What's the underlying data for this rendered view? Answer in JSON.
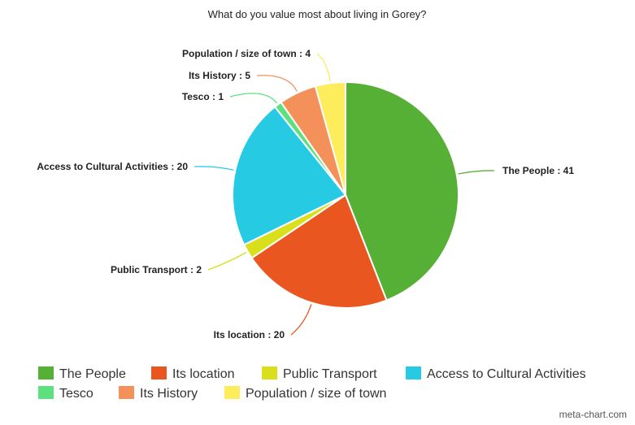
{
  "chart_data": {
    "type": "pie",
    "title": "What do you value most about living in Gorey?",
    "slices": [
      {
        "label": "The People",
        "value": 41,
        "color": "#56b036",
        "display": "The People : 41"
      },
      {
        "label": "Its location",
        "value": 20,
        "color": "#ea5620",
        "display": "Its location : 20"
      },
      {
        "label": "Public Transport",
        "value": 2,
        "color": "#d9df1a",
        "display": "Public Transport : 2"
      },
      {
        "label": "Access to Cultural Activities",
        "value": 20,
        "color": "#26cbe3",
        "display": "Access to Cultural Activities : 20"
      },
      {
        "label": "Tesco",
        "value": 1,
        "color": "#5ee07e",
        "display": "Tesco : 1"
      },
      {
        "label": "Its History",
        "value": 5,
        "color": "#f4915b",
        "display": "Its History : 5"
      },
      {
        "label": "Population / size of town",
        "value": 4,
        "color": "#fdec5c",
        "display": "Population / size of town : 4"
      }
    ],
    "legend_position": "bottom"
  },
  "watermark": "meta-chart.com"
}
